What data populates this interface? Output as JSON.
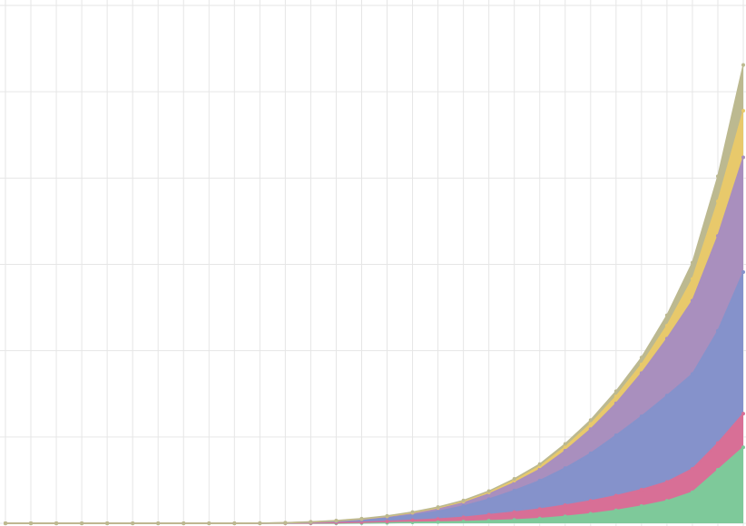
{
  "chart_data": {
    "type": "area",
    "stacked": true,
    "title": "",
    "xlabel": "",
    "ylabel": "",
    "grid": true,
    "legend": "none",
    "xlim": [
      0,
      29
    ],
    "ylim": [
      0,
      6
    ],
    "x": [
      0,
      1,
      2,
      3,
      4,
      5,
      6,
      7,
      8,
      9,
      10,
      11,
      12,
      13,
      14,
      15,
      16,
      17,
      18,
      19,
      20,
      21,
      22,
      23,
      24,
      25,
      26,
      27,
      28,
      29
    ],
    "series": [
      {
        "color": "#7ec99a",
        "values": [
          0,
          0,
          0,
          0,
          0,
          0,
          0,
          0,
          0,
          0,
          0,
          0,
          0,
          0,
          0.002,
          0.005,
          0.01,
          0.015,
          0.02,
          0.03,
          0.04,
          0.055,
          0.08,
          0.11,
          0.15,
          0.2,
          0.26,
          0.36,
          0.62,
          0.88
        ]
      },
      {
        "color": "#d86f96",
        "values": [
          0,
          0,
          0,
          0,
          0,
          0,
          0,
          0,
          0,
          0,
          0,
          0.001,
          0.003,
          0.006,
          0.01,
          0.016,
          0.025,
          0.035,
          0.05,
          0.07,
          0.09,
          0.11,
          0.13,
          0.15,
          0.17,
          0.19,
          0.22,
          0.27,
          0.31,
          0.39
        ]
      },
      {
        "color": "#8592cb",
        "values": [
          0,
          0,
          0,
          0,
          0,
          0,
          0,
          0,
          0,
          0,
          0.001,
          0.003,
          0.008,
          0.015,
          0.025,
          0.04,
          0.06,
          0.09,
          0.13,
          0.18,
          0.25,
          0.33,
          0.43,
          0.55,
          0.7,
          0.85,
          1.0,
          1.1,
          1.3,
          1.64
        ]
      },
      {
        "color": "#a98fbe",
        "values": [
          0,
          0,
          0,
          0,
          0,
          0,
          0,
          0,
          0,
          0,
          0,
          0.001,
          0.003,
          0.006,
          0.01,
          0.015,
          0.022,
          0.03,
          0.04,
          0.06,
          0.09,
          0.13,
          0.2,
          0.28,
          0.37,
          0.5,
          0.66,
          0.85,
          1.1,
          1.33
        ]
      },
      {
        "color": "#e8c96b",
        "values": [
          0,
          0,
          0,
          0,
          0,
          0,
          0,
          0,
          0,
          0,
          0,
          0,
          0.001,
          0.002,
          0.003,
          0.005,
          0.007,
          0.01,
          0.013,
          0.018,
          0.025,
          0.035,
          0.045,
          0.06,
          0.08,
          0.1,
          0.15,
          0.25,
          0.4,
          0.54
        ]
      },
      {
        "color": "#bcb990",
        "values": [
          0,
          0,
          0,
          0,
          0,
          0,
          0,
          0,
          0,
          0,
          0,
          0.001,
          0.002,
          0.003,
          0.004,
          0.005,
          0.006,
          0.008,
          0.011,
          0.015,
          0.02,
          0.025,
          0.035,
          0.045,
          0.06,
          0.08,
          0.12,
          0.19,
          0.29,
          0.53
        ]
      }
    ]
  }
}
